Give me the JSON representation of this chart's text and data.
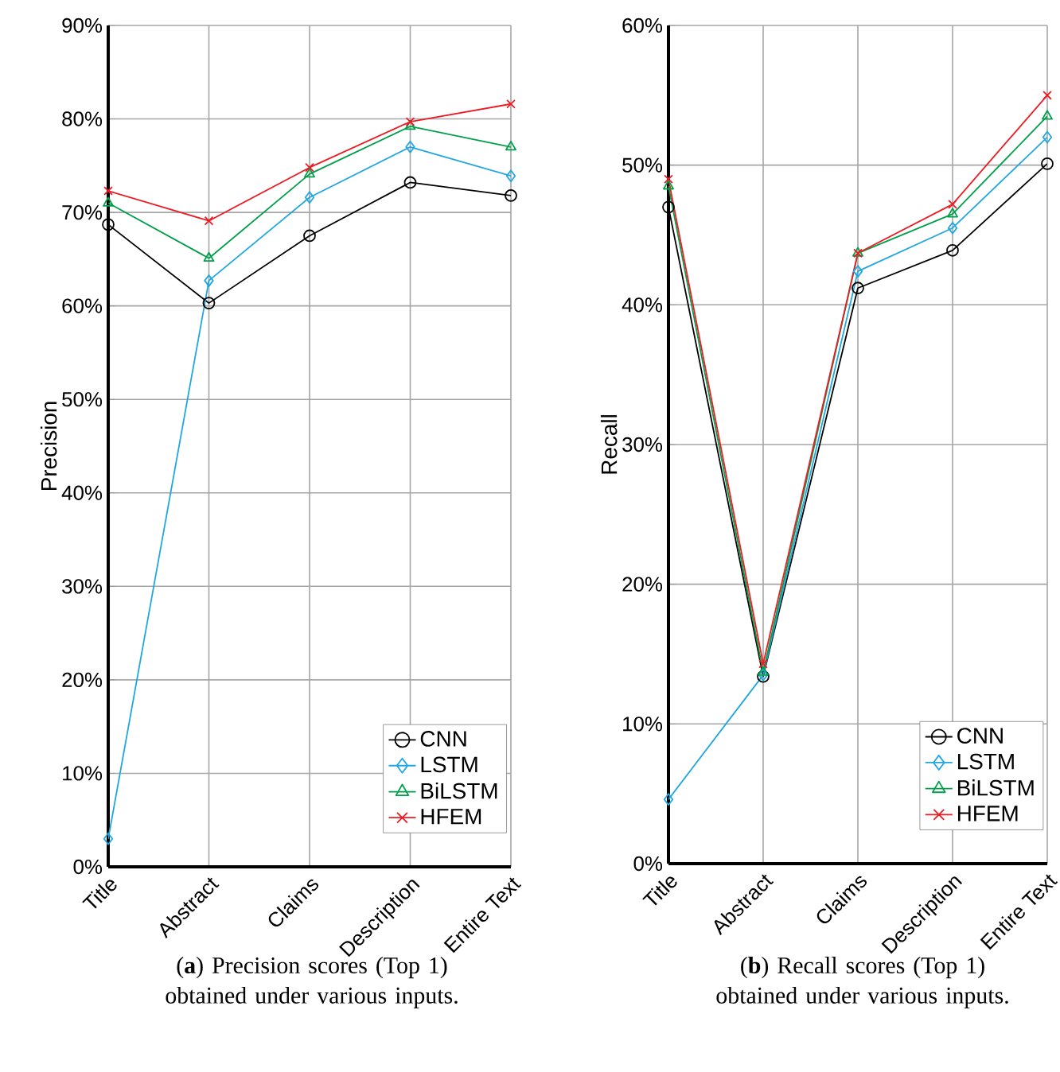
{
  "chart_data": [
    {
      "type": "line",
      "ylabel": "Precision",
      "categories": [
        "Title",
        "Abstract",
        "Claims",
        "Description",
        "Entire Text"
      ],
      "ylim": [
        0,
        90
      ],
      "yticks": [
        {
          "value": 0,
          "label": "0%"
        },
        {
          "value": 10,
          "label": "10%"
        },
        {
          "value": 20,
          "label": "20%"
        },
        {
          "value": 30,
          "label": "30%"
        },
        {
          "value": 40,
          "label": "40%"
        },
        {
          "value": 50,
          "label": "50%"
        },
        {
          "value": 60,
          "label": "60%"
        },
        {
          "value": 70,
          "label": "70%"
        },
        {
          "value": 80,
          "label": "80%"
        },
        {
          "value": 90,
          "label": "90%"
        }
      ],
      "grid": true,
      "legend": "bottom right",
      "annotations": [
        "(**a**) Precision scores (Top 1) obtained under various inputs."
      ],
      "series": [
        {
          "name": "CNN",
          "color": "#000000",
          "marker": "circle",
          "values": [
            68.7,
            60.3,
            67.5,
            73.2,
            71.8
          ]
        },
        {
          "name": "LSTM",
          "color": "#1ea7e1",
          "marker": "diamond",
          "values": [
            3.0,
            62.7,
            71.6,
            77.0,
            73.9
          ]
        },
        {
          "name": "BiLSTM",
          "color": "#00a04b",
          "marker": "triangle",
          "values": [
            71.0,
            65.1,
            74.1,
            79.2,
            77.0
          ]
        },
        {
          "name": "HFEM",
          "color": "#ed1c24",
          "marker": "cross",
          "values": [
            72.3,
            69.1,
            74.8,
            79.7,
            81.6
          ]
        }
      ]
    },
    {
      "type": "line",
      "ylabel": "Recall",
      "categories": [
        "Title",
        "Abstract",
        "Claims",
        "Description",
        "Entire Text"
      ],
      "ylim": [
        0,
        60
      ],
      "yticks": [
        {
          "value": 0,
          "label": "0%"
        },
        {
          "value": 10,
          "label": "10%"
        },
        {
          "value": 20,
          "label": "20%"
        },
        {
          "value": 30,
          "label": "30%"
        },
        {
          "value": 40,
          "label": "40%"
        },
        {
          "value": 50,
          "label": "50%"
        },
        {
          "value": 60,
          "label": "60%"
        }
      ],
      "grid": true,
      "legend": "bottom right",
      "annotations": [
        "(**b**) Recall scores (Top 1) obtained under various inputs."
      ],
      "series": [
        {
          "name": "CNN",
          "color": "#000000",
          "marker": "circle",
          "values": [
            47.0,
            13.4,
            41.2,
            43.9,
            50.1
          ]
        },
        {
          "name": "LSTM",
          "color": "#1ea7e1",
          "marker": "diamond",
          "values": [
            4.6,
            13.5,
            42.4,
            45.5,
            52.0
          ]
        },
        {
          "name": "BiLSTM",
          "color": "#00a04b",
          "marker": "triangle",
          "values": [
            48.5,
            13.7,
            43.7,
            46.5,
            53.5
          ]
        },
        {
          "name": "HFEM",
          "color": "#ed1c24",
          "marker": "cross",
          "values": [
            49.0,
            14.3,
            43.7,
            47.2,
            55.0
          ]
        }
      ]
    }
  ]
}
